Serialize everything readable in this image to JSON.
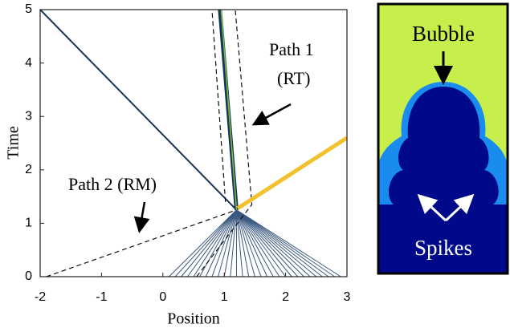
{
  "chart_data": {
    "type": "line",
    "xlabel": "Position",
    "ylabel": "Time",
    "xlim": [
      -2,
      3
    ],
    "ylim": [
      0,
      5
    ],
    "xticks": [
      -2,
      -1,
      0,
      1,
      2,
      3
    ],
    "yticks": [
      0,
      1,
      2,
      3,
      4,
      5
    ],
    "annotations": [
      "Path 1",
      "(RT)",
      "Path 2 (RM)"
    ],
    "series": [
      {
        "color": "#1b3556",
        "width": 2,
        "style": "solid",
        "x": [
          -2,
          1.2
        ],
        "values": [
          5,
          1.25
        ]
      },
      {
        "color": "#111111",
        "width": 1.2,
        "style": "dashed",
        "x": [
          -1.9,
          1.2
        ],
        "values": [
          0,
          1.25
        ]
      },
      {
        "color": "#111111",
        "width": 1.2,
        "style": "dashed",
        "x": [
          0.55,
          1.45,
          1.18
        ],
        "values": [
          0,
          1.35,
          5
        ]
      },
      {
        "color": "#111111",
        "width": 1.2,
        "style": "dashed",
        "x": [
          1.02,
          0.8
        ],
        "values": [
          1.4,
          5
        ]
      },
      {
        "color": "#1b3556",
        "width": 5,
        "style": "solid",
        "x": [
          1.2,
          0.93
        ],
        "values": [
          1.25,
          5
        ]
      },
      {
        "color": "#7cc242",
        "width": 1.5,
        "style": "solid",
        "x": [
          1.2,
          0.95
        ],
        "values": [
          1.25,
          5
        ]
      },
      {
        "color": "#f2c12e",
        "width": 5,
        "style": "solid",
        "x": [
          1.22,
          3
        ],
        "values": [
          1.28,
          2.6
        ]
      }
    ],
    "fan": {
      "color": "#3a587f",
      "origin_x": 1.2,
      "origin_y": 1.25,
      "end_y": 0,
      "ends_x": [
        0.1,
        0.2,
        0.3,
        0.4,
        0.5,
        0.6,
        0.7,
        0.8,
        0.9,
        1.0,
        1.1,
        1.2,
        1.3,
        1.4,
        1.5,
        1.6,
        1.7,
        1.8,
        1.9,
        2.0,
        2.1,
        2.2,
        2.3,
        2.4,
        2.5,
        2.6,
        2.7,
        2.8,
        2.9
      ]
    },
    "inset": {
      "labels": [
        "Bubble",
        "Spikes"
      ]
    }
  }
}
